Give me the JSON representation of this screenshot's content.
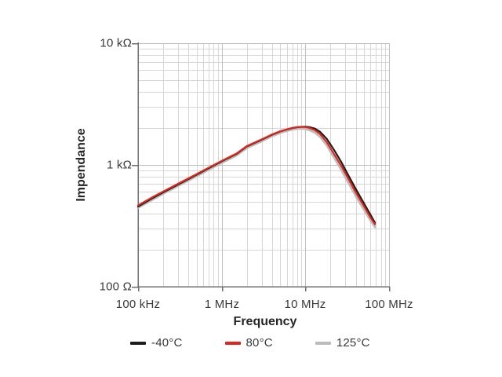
{
  "chart_data": {
    "type": "line",
    "title": "",
    "xlabel": "Frequency",
    "ylabel": "Impendance",
    "x_scale": "log",
    "y_scale": "log",
    "xlim_mhz": [
      0.1,
      100
    ],
    "ylim_ohm": [
      100,
      10000
    ],
    "grid": "log major + minor, on",
    "legend_position": "bottom",
    "x_ticks": [
      {
        "mhz": 0.1,
        "label": "100 kHz"
      },
      {
        "mhz": 1,
        "label": "1 MHz"
      },
      {
        "mhz": 10,
        "label": "10 MHz"
      },
      {
        "mhz": 100,
        "label": "100 MHz"
      }
    ],
    "y_ticks": [
      {
        "ohm": 100,
        "label": "100 Ω"
      },
      {
        "ohm": 1000,
        "label": "1 kΩ"
      },
      {
        "ohm": 10000,
        "label": "10 kΩ"
      }
    ],
    "f_mhz": [
      0.1,
      0.15,
      0.2,
      0.3,
      0.5,
      0.7,
      1,
      1.5,
      2,
      3,
      4,
      5,
      6,
      7,
      8,
      9,
      10,
      11,
      13,
      15,
      18,
      22,
      27,
      33,
      40,
      50,
      60,
      68
    ],
    "series": [
      {
        "name": "-40°C",
        "color": "#1d1d1b",
        "stroke_width": 2.2,
        "values_ohm": [
          455,
          535,
          595,
          690,
          830,
          940,
          1070,
          1230,
          1420,
          1610,
          1770,
          1885,
          1955,
          2010,
          2040,
          2055,
          2060,
          2050,
          1990,
          1870,
          1640,
          1330,
          1050,
          810,
          635,
          485,
          390,
          335
        ]
      },
      {
        "name": "80°C",
        "color": "#e0251b",
        "stroke_width": 2.2,
        "values_ohm": [
          465,
          545,
          605,
          700,
          840,
          950,
          1080,
          1240,
          1430,
          1620,
          1780,
          1890,
          1960,
          2015,
          2045,
          2055,
          2045,
          2020,
          1930,
          1790,
          1540,
          1230,
          975,
          760,
          595,
          460,
          370,
          325
        ]
      },
      {
        "name": "125°C",
        "color": "#bcbcbc",
        "stroke_width": 2.8,
        "values_ohm": [
          445,
          520,
          580,
          672,
          808,
          915,
          1040,
          1195,
          1380,
          1565,
          1725,
          1835,
          1905,
          1955,
          1985,
          1990,
          1975,
          1940,
          1845,
          1700,
          1450,
          1150,
          905,
          705,
          555,
          430,
          350,
          308
        ]
      }
    ],
    "draw_order": [
      2,
      0,
      1
    ]
  },
  "colors": {
    "background": "#ffffff",
    "axis": "#6e6e6e",
    "grid_major": "#bfbfbf",
    "grid_minor": "#d7d7d7",
    "tick_text": "#3a3a3a",
    "axis_title_text": "#262626"
  }
}
